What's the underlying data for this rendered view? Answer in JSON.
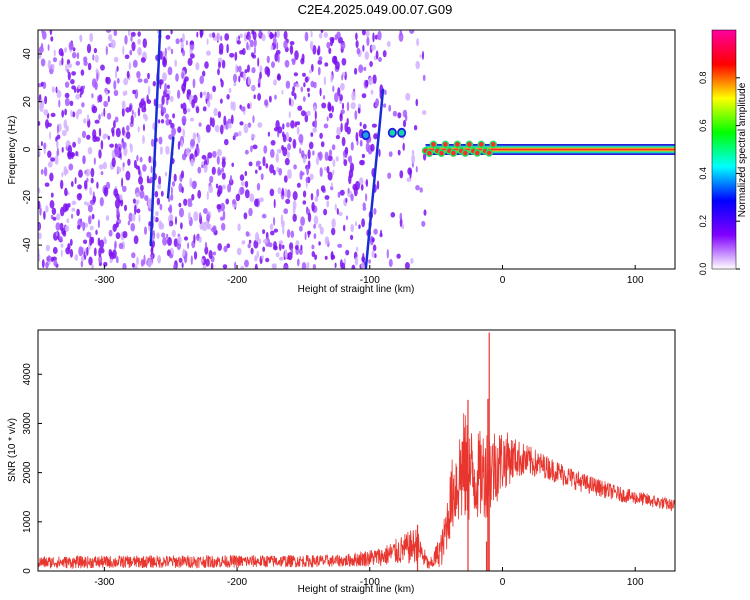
{
  "title": "C2E4.2025.049.00.07.G09",
  "chart_data": [
    {
      "type": "heatmap",
      "xlabel": "Height of straight line (km)",
      "ylabel": "Frequency (Hz)",
      "xlim": [
        -350,
        130
      ],
      "ylim": [
        -50,
        50
      ],
      "x_ticks": [
        -300,
        -200,
        -100,
        0,
        100
      ],
      "y_ticks": [
        -40,
        -20,
        0,
        20,
        40
      ],
      "colorbar": {
        "label": "Normalized spectral amplitude",
        "range": [
          0.0,
          1.0
        ],
        "ticks": [
          "0.0",
          "0.2",
          "0.4",
          "0.6",
          "0.8"
        ],
        "colors": [
          "#ffffff",
          "#8000ff",
          "#0000ff",
          "#00ffff",
          "#00ff00",
          "#ffff00",
          "#ff0000",
          "#ff00a0"
        ]
      },
      "features": {
        "noise_region_x": [
          -350,
          -58
        ],
        "noise_edge_x": [
          -95,
          -60
        ],
        "signal_line": {
          "frequency": 0,
          "x_start": -58,
          "x_end": 130
        },
        "diagonal_streaks": [
          {
            "x_start": -265,
            "x_end": -258,
            "f_start": -40,
            "f_end": 50
          },
          {
            "x_start": -252,
            "x_end": -248,
            "f_start": -20,
            "f_end": 5
          },
          {
            "x_start": -103,
            "x_end": -90,
            "f_start": -50,
            "f_end": 25
          }
        ],
        "blobs": [
          {
            "x": -103,
            "f": 6,
            "level": 0.35
          },
          {
            "x": -83,
            "f": 7,
            "level": 0.45
          },
          {
            "x": -76,
            "f": 7,
            "level": 0.5
          }
        ]
      }
    },
    {
      "type": "line",
      "xlabel": "Height of straight line (km)",
      "ylabel": "SNR (10 * v/v)",
      "xlim": [
        -350,
        130
      ],
      "ylim": [
        0,
        4900
      ],
      "x_ticks": [
        -300,
        -200,
        -100,
        0,
        100
      ],
      "y_ticks": [
        0,
        1000,
        2000,
        3000,
        4000
      ],
      "color": "#e8352e",
      "envelope": [
        {
          "x": -350,
          "low": 50,
          "high": 300
        },
        {
          "x": -250,
          "low": 60,
          "high": 320
        },
        {
          "x": -120,
          "low": 80,
          "high": 330
        },
        {
          "x": -90,
          "low": 100,
          "high": 500
        },
        {
          "x": -65,
          "low": 150,
          "high": 900
        },
        {
          "x": -55,
          "low": 0,
          "high": 200
        },
        {
          "x": -45,
          "low": 100,
          "high": 900
        },
        {
          "x": -38,
          "low": 800,
          "high": 2300
        },
        {
          "x": -30,
          "low": 900,
          "high": 3300
        },
        {
          "x": -20,
          "low": 1000,
          "high": 2800
        },
        {
          "x": -10,
          "low": 1100,
          "high": 3000
        },
        {
          "x": 0,
          "low": 1600,
          "high": 2900
        },
        {
          "x": 10,
          "low": 1900,
          "high": 2700
        },
        {
          "x": 30,
          "low": 1900,
          "high": 2400
        },
        {
          "x": 60,
          "low": 1600,
          "high": 2000
        },
        {
          "x": 90,
          "low": 1400,
          "high": 1700
        },
        {
          "x": 130,
          "low": 1200,
          "high": 1450
        }
      ],
      "spikes": [
        {
          "x": -10,
          "value": 4850
        },
        {
          "x": -11,
          "value": 3500
        },
        {
          "x": -26,
          "value": 3480
        },
        {
          "x": -12,
          "value": 600
        },
        {
          "x": -64,
          "value": 940
        }
      ]
    }
  ]
}
